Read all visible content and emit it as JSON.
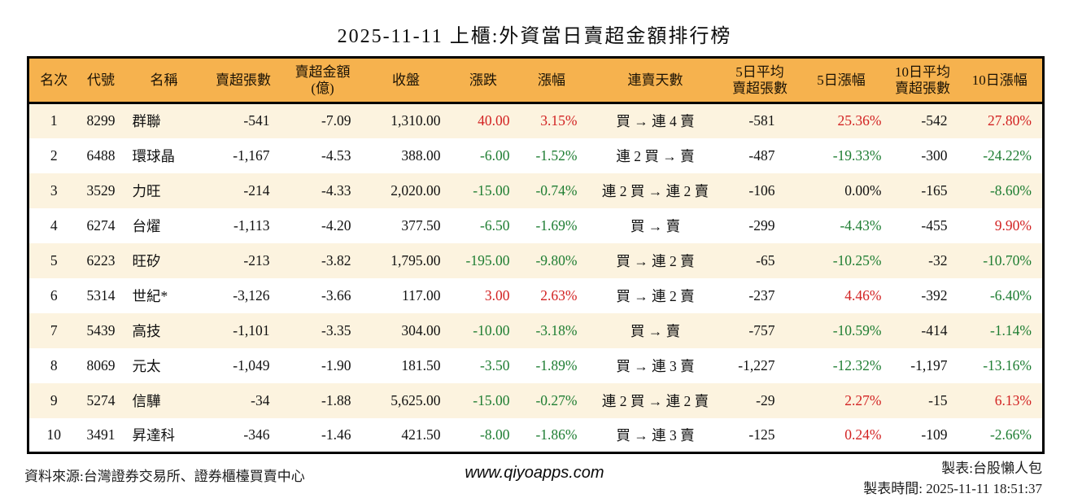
{
  "title": "2025-11-11 上櫃:外資當日賣超金額排行榜",
  "colors": {
    "up": "#d22222",
    "down": "#1e7d32",
    "flat": "#111111",
    "header_bg": "#f6b24e",
    "row_alt": "#fcf3df",
    "border": "#000000"
  },
  "table": {
    "headers": [
      {
        "name": "col-rank",
        "label": "名次"
      },
      {
        "name": "col-code",
        "label": "代號"
      },
      {
        "name": "col-name",
        "label": "名稱"
      },
      {
        "name": "col-sell-volume",
        "label": "賣超張數"
      },
      {
        "name": "col-sell-amount",
        "label": "賣超金額\n(億)"
      },
      {
        "name": "col-close",
        "label": "收盤"
      },
      {
        "name": "col-change",
        "label": "漲跌"
      },
      {
        "name": "col-change-pct",
        "label": "漲幅"
      },
      {
        "name": "col-streak",
        "label": "連賣天數"
      },
      {
        "name": "col-avg5",
        "label": "5日平均\n賣超張數"
      },
      {
        "name": "col-pct5",
        "label": "5日漲幅"
      },
      {
        "name": "col-avg10",
        "label": "10日平均\n賣超張數"
      },
      {
        "name": "col-pct10",
        "label": "10日漲幅"
      }
    ],
    "rows": [
      {
        "rank": "1",
        "code": "8299",
        "name": "群聯",
        "sell_volume": "-541",
        "sell_amount": "-7.09",
        "close": "1,310.00",
        "change": "40.00",
        "change_dir": "up",
        "change_pct": "3.15%",
        "change_pct_dir": "up",
        "streak": "買 → 連 4 賣",
        "avg5": "-581",
        "pct5": "25.36%",
        "pct5_dir": "up",
        "avg10": "-542",
        "pct10": "27.80%",
        "pct10_dir": "up"
      },
      {
        "rank": "2",
        "code": "6488",
        "name": "環球晶",
        "sell_volume": "-1,167",
        "sell_amount": "-4.53",
        "close": "388.00",
        "change": "-6.00",
        "change_dir": "down",
        "change_pct": "-1.52%",
        "change_pct_dir": "down",
        "streak": "連 2 買 → 賣",
        "avg5": "-487",
        "pct5": "-19.33%",
        "pct5_dir": "down",
        "avg10": "-300",
        "pct10": "-24.22%",
        "pct10_dir": "down"
      },
      {
        "rank": "3",
        "code": "3529",
        "name": "力旺",
        "sell_volume": "-214",
        "sell_amount": "-4.33",
        "close": "2,020.00",
        "change": "-15.00",
        "change_dir": "down",
        "change_pct": "-0.74%",
        "change_pct_dir": "down",
        "streak": "連 2 買 → 連 2 賣",
        "avg5": "-106",
        "pct5": "0.00%",
        "pct5_dir": "flat",
        "avg10": "-165",
        "pct10": "-8.60%",
        "pct10_dir": "down"
      },
      {
        "rank": "4",
        "code": "6274",
        "name": "台燿",
        "sell_volume": "-1,113",
        "sell_amount": "-4.20",
        "close": "377.50",
        "change": "-6.50",
        "change_dir": "down",
        "change_pct": "-1.69%",
        "change_pct_dir": "down",
        "streak": "買 → 賣",
        "avg5": "-299",
        "pct5": "-4.43%",
        "pct5_dir": "down",
        "avg10": "-455",
        "pct10": "9.90%",
        "pct10_dir": "up"
      },
      {
        "rank": "5",
        "code": "6223",
        "name": "旺矽",
        "sell_volume": "-213",
        "sell_amount": "-3.82",
        "close": "1,795.00",
        "change": "-195.00",
        "change_dir": "down",
        "change_pct": "-9.80%",
        "change_pct_dir": "down",
        "streak": "買 → 連 2 賣",
        "avg5": "-65",
        "pct5": "-10.25%",
        "pct5_dir": "down",
        "avg10": "-32",
        "pct10": "-10.70%",
        "pct10_dir": "down"
      },
      {
        "rank": "6",
        "code": "5314",
        "name": "世紀*",
        "sell_volume": "-3,126",
        "sell_amount": "-3.66",
        "close": "117.00",
        "change": "3.00",
        "change_dir": "up",
        "change_pct": "2.63%",
        "change_pct_dir": "up",
        "streak": "買 → 連 2 賣",
        "avg5": "-237",
        "pct5": "4.46%",
        "pct5_dir": "up",
        "avg10": "-392",
        "pct10": "-6.40%",
        "pct10_dir": "down"
      },
      {
        "rank": "7",
        "code": "5439",
        "name": "高技",
        "sell_volume": "-1,101",
        "sell_amount": "-3.35",
        "close": "304.00",
        "change": "-10.00",
        "change_dir": "down",
        "change_pct": "-3.18%",
        "change_pct_dir": "down",
        "streak": "買 → 賣",
        "avg5": "-757",
        "pct5": "-10.59%",
        "pct5_dir": "down",
        "avg10": "-414",
        "pct10": "-1.14%",
        "pct10_dir": "down"
      },
      {
        "rank": "8",
        "code": "8069",
        "name": "元太",
        "sell_volume": "-1,049",
        "sell_amount": "-1.90",
        "close": "181.50",
        "change": "-3.50",
        "change_dir": "down",
        "change_pct": "-1.89%",
        "change_pct_dir": "down",
        "streak": "買 → 連 3 賣",
        "avg5": "-1,227",
        "pct5": "-12.32%",
        "pct5_dir": "down",
        "avg10": "-1,197",
        "pct10": "-13.16%",
        "pct10_dir": "down"
      },
      {
        "rank": "9",
        "code": "5274",
        "name": "信驊",
        "sell_volume": "-34",
        "sell_amount": "-1.88",
        "close": "5,625.00",
        "change": "-15.00",
        "change_dir": "down",
        "change_pct": "-0.27%",
        "change_pct_dir": "down",
        "streak": "連 2 買 → 連 2 賣",
        "avg5": "-29",
        "pct5": "2.27%",
        "pct5_dir": "up",
        "avg10": "-15",
        "pct10": "6.13%",
        "pct10_dir": "up"
      },
      {
        "rank": "10",
        "code": "3491",
        "name": "昇達科",
        "sell_volume": "-346",
        "sell_amount": "-1.46",
        "close": "421.50",
        "change": "-8.00",
        "change_dir": "down",
        "change_pct": "-1.86%",
        "change_pct_dir": "down",
        "streak": "買 → 連 3 賣",
        "avg5": "-125",
        "pct5": "0.24%",
        "pct5_dir": "up",
        "avg10": "-109",
        "pct10": "-2.66%",
        "pct10_dir": "down"
      }
    ]
  },
  "footer": {
    "source": "資料來源:台灣證券交易所、證券櫃檯買賣中心",
    "url": "www.qiyoapps.com",
    "credit": "製表:台股懶人包",
    "generated_at": "製表時間: 2025-11-11 18:51:37"
  }
}
